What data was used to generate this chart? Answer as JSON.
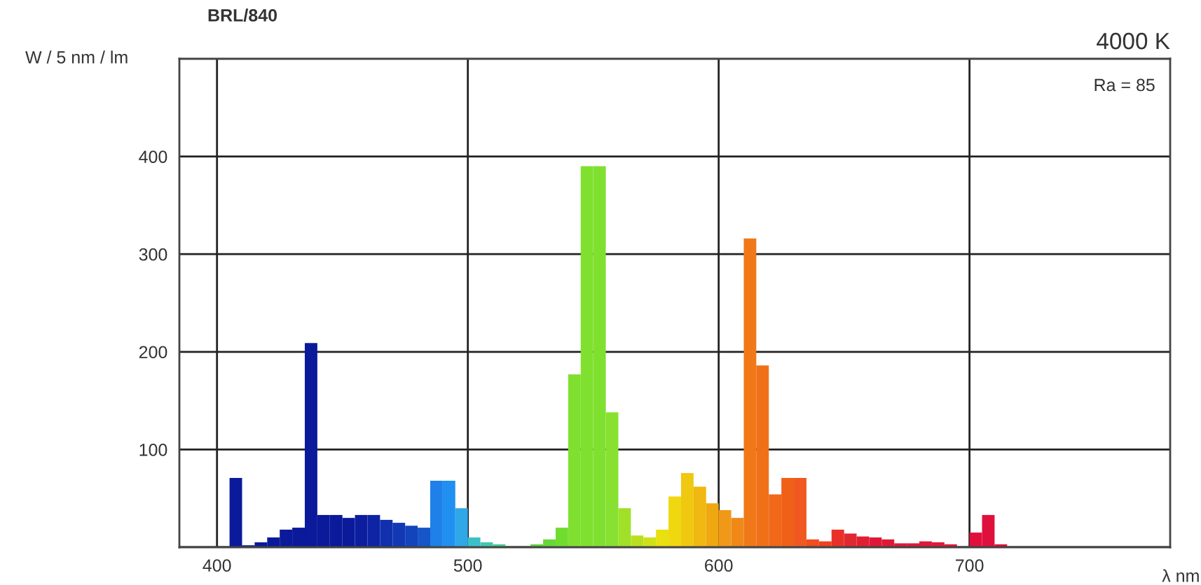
{
  "chart_data": {
    "type": "histogram",
    "title": "BRL/840",
    "ylabel": "W / 5 nm / lm",
    "xlabel": "λ nm",
    "annotations": [
      "4000 K",
      "Ra = 85"
    ],
    "bins": [
      400,
      405,
      410,
      415,
      420,
      425,
      430,
      435,
      440,
      445,
      450,
      455,
      460,
      465,
      470,
      475,
      480,
      485,
      490,
      495,
      500,
      505,
      510,
      515,
      520,
      525,
      530,
      535,
      540,
      545,
      550,
      555,
      560,
      565,
      570,
      575,
      580,
      585,
      590,
      595,
      600,
      605,
      610,
      615,
      620,
      625,
      630,
      635,
      640,
      645,
      650,
      655,
      660,
      665,
      670,
      675,
      680,
      685,
      690,
      695,
      700,
      705,
      710,
      715,
      720
    ],
    "values": [
      null,
      71,
      2,
      5,
      10,
      18,
      20,
      209,
      33,
      33,
      30,
      33,
      33,
      28,
      25,
      22,
      20,
      68,
      68,
      40,
      10,
      5,
      3,
      null,
      null,
      3,
      8,
      20,
      177,
      390,
      390,
      138,
      40,
      12,
      10,
      18,
      52,
      76,
      62,
      45,
      38,
      30,
      316,
      186,
      54,
      71,
      71,
      8,
      6,
      18,
      14,
      11,
      10,
      8,
      4,
      4,
      6,
      5,
      3,
      null,
      15,
      33,
      3,
      null
    ],
    "colors": [
      "#0a1a9a",
      "#0a1a9a",
      "#0a1a9a",
      "#0a1a9a",
      "#0a1a9a",
      "#0a1a9a",
      "#0a1a9a",
      "#0a1a9a",
      "#0a1a9a",
      "#0a1a9a",
      "#0a1a9a",
      "#0c1e9e",
      "#0e24a4",
      "#1030ae",
      "#1238b4",
      "#1444bc",
      "#1656c8",
      "#1e80e8",
      "#2090f0",
      "#30a8e8",
      "#3cc0c8",
      "#40c8b0",
      "#48c890",
      "#50c870",
      "#58cc50",
      "#60d040",
      "#68d838",
      "#70dc30",
      "#80e030",
      "#80e030",
      "#80e030",
      "#88e030",
      "#a0e028",
      "#b8e020",
      "#d0e018",
      "#e8e010",
      "#f0d810",
      "#f0c810",
      "#f0b810",
      "#f0a810",
      "#f09818",
      "#f08818",
      "#f07818",
      "#f07018",
      "#f06818",
      "#f06018",
      "#f05820",
      "#f04c20",
      "#f04020",
      "#e83028",
      "#e02830",
      "#e02030",
      "#e01838",
      "#e01838",
      "#e01838",
      "#e01838",
      "#e01838",
      "#e01838",
      "#e01838",
      "#e0103c",
      "#e0103c",
      "#e0103c",
      "#e0103c",
      "#e0103c"
    ],
    "xlim": [
      385,
      780
    ],
    "ylim": [
      0,
      500
    ],
    "xticks": [
      400,
      500,
      600,
      700
    ],
    "yticks": [
      {
        "value": 0,
        "label": null
      },
      100,
      200,
      300,
      400
    ],
    "grid": true,
    "legend": false
  }
}
